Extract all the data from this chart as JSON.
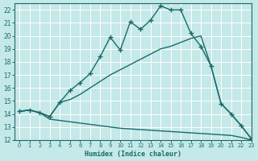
{
  "xlabel": "Humidex (Indice chaleur)",
  "xlim": [
    -0.5,
    23
  ],
  "ylim": [
    12,
    22.5
  ],
  "yticks": [
    12,
    13,
    14,
    15,
    16,
    17,
    18,
    19,
    20,
    21,
    22
  ],
  "xticks": [
    0,
    1,
    2,
    3,
    4,
    5,
    6,
    7,
    8,
    9,
    10,
    11,
    12,
    13,
    14,
    15,
    16,
    17,
    18,
    19,
    20,
    21,
    22,
    23
  ],
  "bg_color": "#c5e8e8",
  "line_color": "#1a6b6b",
  "grid_color": "#ffffff",
  "line1_x": [
    0,
    1,
    2,
    3,
    4,
    5,
    6,
    7,
    8,
    9,
    10,
    11,
    12,
    13,
    14,
    15,
    16,
    17,
    18,
    19,
    20,
    21,
    22,
    23
  ],
  "line1_y": [
    14.2,
    14.3,
    14.1,
    13.8,
    14.9,
    15.8,
    16.4,
    17.1,
    18.4,
    19.9,
    18.9,
    21.1,
    20.5,
    21.2,
    22.3,
    22.0,
    22.0,
    20.2,
    19.2,
    17.7,
    14.8,
    14.0,
    13.1,
    12.1
  ],
  "line2_x": [
    0,
    1,
    2,
    3,
    4,
    5,
    6,
    7,
    8,
    9,
    10,
    11,
    12,
    13,
    14,
    15,
    16,
    17,
    18,
    19,
    20,
    21,
    22,
    23
  ],
  "line2_y": [
    14.2,
    14.3,
    14.1,
    13.8,
    14.9,
    15.1,
    15.5,
    16.0,
    16.5,
    17.0,
    17.4,
    17.8,
    18.2,
    18.6,
    19.0,
    19.2,
    19.5,
    19.8,
    20.0,
    17.7,
    14.8,
    14.0,
    13.1,
    12.1
  ],
  "line3_x": [
    0,
    1,
    2,
    3,
    4,
    5,
    6,
    7,
    8,
    9,
    10,
    11,
    12,
    13,
    14,
    15,
    16,
    17,
    18,
    19,
    20,
    21,
    22,
    23
  ],
  "line3_y": [
    14.2,
    14.3,
    14.1,
    13.6,
    13.5,
    13.4,
    13.3,
    13.2,
    13.1,
    13.0,
    12.9,
    12.85,
    12.8,
    12.75,
    12.7,
    12.65,
    12.6,
    12.55,
    12.5,
    12.45,
    12.4,
    12.35,
    12.2,
    12.0
  ]
}
